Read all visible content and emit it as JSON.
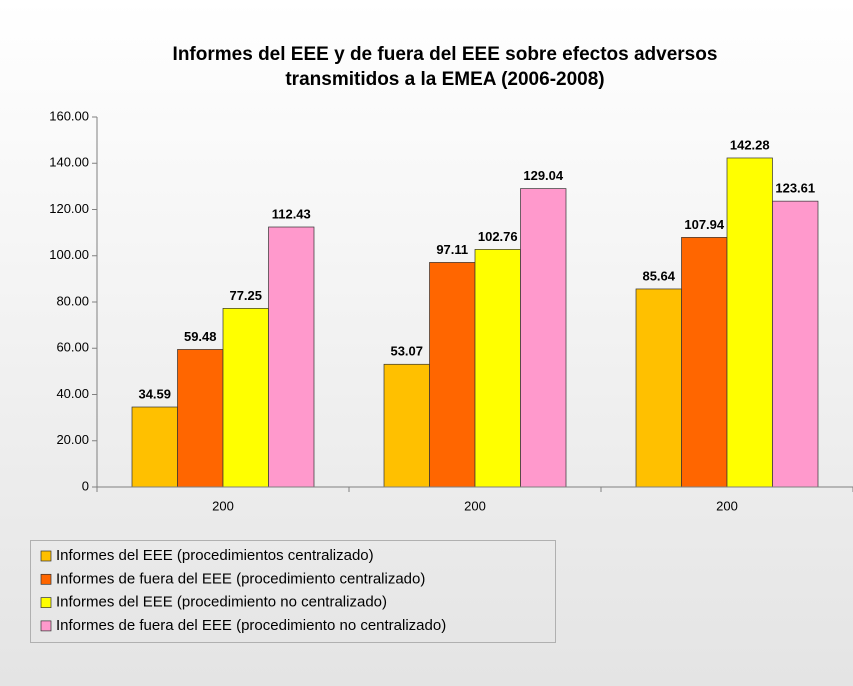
{
  "chart_data": {
    "type": "bar",
    "title": "Informes del EEE y de fuera del EEE sobre efectos adversos transmitidos a la EMEA (2006-2008)",
    "categories": [
      "200",
      "200",
      "200"
    ],
    "series": [
      {
        "name": "Informes del EEE (procedimientos centralizado)",
        "color": "#ffc000",
        "values": [
          34.59,
          53.07,
          85.64
        ]
      },
      {
        "name": "Informes de fuera del EEE (procedimiento centralizado)",
        "color": "#ff6600",
        "values": [
          59.48,
          97.11,
          107.94
        ]
      },
      {
        "name": "Informes del EEE (procedimiento no centralizado)",
        "color": "#ffff00",
        "values": [
          77.25,
          102.76,
          142.28
        ]
      },
      {
        "name": "Informes de fuera del EEE (procedimiento no centralizado)",
        "color": "#ff99cc",
        "values": [
          112.43,
          129.04,
          123.61
        ]
      }
    ],
    "ylim": [
      0,
      160
    ],
    "yticks": [
      0,
      {
        "value": 20,
        "label": "20.00"
      },
      {
        "value": 40,
        "label": "40.00"
      },
      {
        "value": 60,
        "label": "60.00"
      },
      {
        "value": 80,
        "label": "80.00"
      },
      {
        "value": 100,
        "label": "100.00"
      },
      {
        "value": 120,
        "label": "120.00"
      },
      {
        "value": 140,
        "label": "140.00"
      },
      {
        "value": 160,
        "label": "160.00"
      }
    ],
    "legend": "bottom-left"
  }
}
